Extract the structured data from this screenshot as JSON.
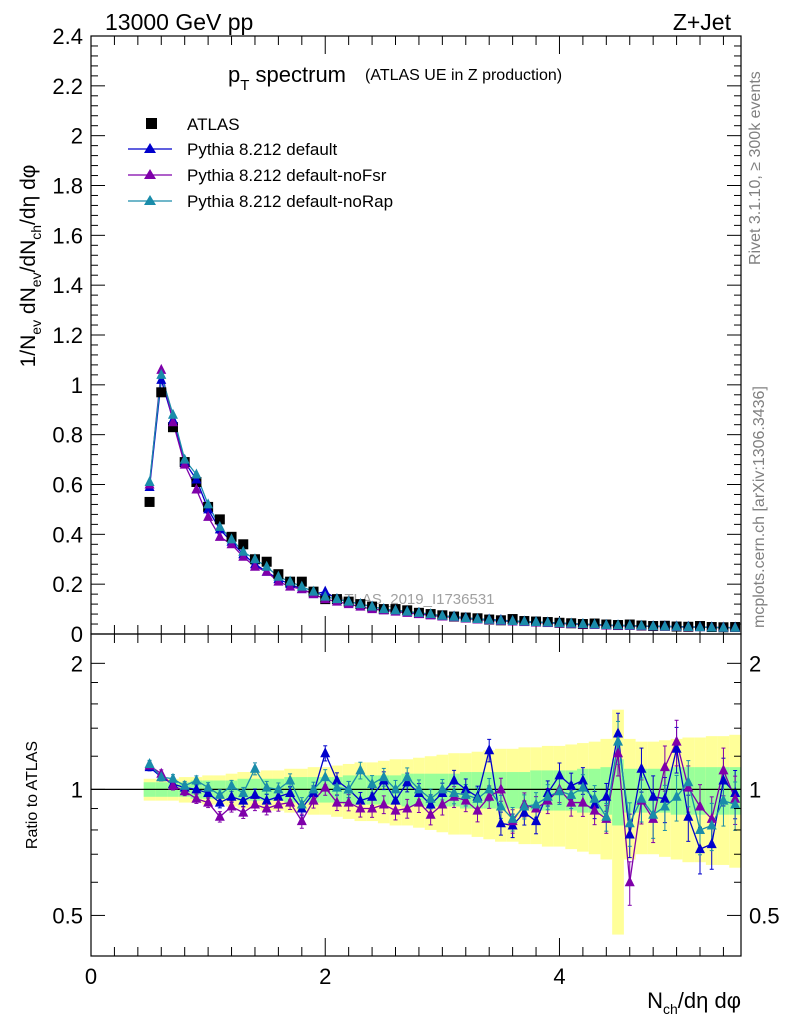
{
  "header": {
    "left": "13000 GeV pp",
    "right": "Z+Jet"
  },
  "side_labels": {
    "rivet": "Rivet 3.1.10, ≥ 300k events",
    "mcplots": "mcplots.cern.ch [arXiv:1306.3436]"
  },
  "plot_title": {
    "main_p": "p",
    "main_sub": "T",
    "main_rest": " spectrum",
    "small": "(ATLAS UE in Z production)"
  },
  "watermark": "ATLAS_2019_I1736531",
  "colors": {
    "atlas": "#000000",
    "default": "#0000cc",
    "noFsr": "#7f00aa",
    "noRap": "#1a8caa",
    "band_yellow": "#ffff99",
    "band_green": "#99ff99"
  },
  "chart_data": [
    {
      "type": "scatter",
      "panel": "main",
      "ylabel": "1/N_ev dN_ev/dN_ch/dη dφ",
      "ylim": [
        0,
        2.4
      ],
      "xlim": [
        0,
        5.55
      ],
      "yticks": [
        "0",
        "0.2",
        "0.4",
        "0.6",
        "0.8",
        "1",
        "1.2",
        "1.4",
        "1.6",
        "1.8",
        "2",
        "2.2",
        "2.4"
      ],
      "x": [
        0.5,
        0.6,
        0.7,
        0.8,
        0.9,
        1.0,
        1.1,
        1.2,
        1.3,
        1.4,
        1.5,
        1.6,
        1.7,
        1.8,
        1.9,
        2.0,
        2.1,
        2.2,
        2.3,
        2.4,
        2.5,
        2.6,
        2.7,
        2.8,
        2.9,
        3.0,
        3.1,
        3.2,
        3.3,
        3.4,
        3.5,
        3.6,
        3.7,
        3.8,
        3.9,
        4.0,
        4.1,
        4.2,
        4.3,
        4.4,
        4.5,
        4.6,
        4.7,
        4.8,
        4.9,
        5.0,
        5.1,
        5.2,
        5.3,
        5.4,
        5.5
      ],
      "series": [
        {
          "name": "ATLAS",
          "marker": "square",
          "values": [
            0.53,
            0.97,
            0.83,
            0.69,
            0.61,
            0.51,
            0.46,
            0.39,
            0.36,
            0.3,
            0.29,
            0.24,
            0.21,
            0.21,
            0.17,
            0.14,
            0.14,
            0.13,
            0.12,
            0.11,
            0.1,
            0.1,
            0.095,
            0.085,
            0.08,
            0.075,
            0.07,
            0.066,
            0.063,
            0.058,
            0.055,
            0.06,
            0.052,
            0.05,
            0.048,
            0.045,
            0.043,
            0.04,
            0.042,
            0.038,
            0.036,
            0.038,
            0.034,
            0.032,
            0.033,
            0.03,
            0.029,
            0.032,
            0.028,
            0.027,
            0.028
          ]
        },
        {
          "name": "Pythia 8.212 default",
          "marker": "triangle",
          "values": [
            0.59,
            1.02,
            0.86,
            0.69,
            0.62,
            0.5,
            0.42,
            0.37,
            0.32,
            0.28,
            0.25,
            0.22,
            0.2,
            0.18,
            0.16,
            0.17,
            0.14,
            0.13,
            0.12,
            0.11,
            0.1,
            0.095,
            0.09,
            0.085,
            0.078,
            0.072,
            0.07,
            0.065,
            0.06,
            0.058,
            0.056,
            0.052,
            0.05,
            0.048,
            0.046,
            0.044,
            0.041,
            0.039,
            0.037,
            0.036,
            0.034,
            0.034,
            0.032,
            0.031,
            0.031,
            0.03,
            0.029,
            0.028,
            0.027,
            0.026,
            0.026
          ]
        },
        {
          "name": "Pythia 8.212 default-noFsr",
          "marker": "triangle",
          "values": [
            0.6,
            1.06,
            0.85,
            0.68,
            0.58,
            0.47,
            0.39,
            0.36,
            0.31,
            0.27,
            0.25,
            0.21,
            0.19,
            0.18,
            0.16,
            0.14,
            0.13,
            0.12,
            0.11,
            0.1,
            0.095,
            0.09,
            0.085,
            0.08,
            0.075,
            0.07,
            0.067,
            0.062,
            0.058,
            0.055,
            0.052,
            0.05,
            0.048,
            0.046,
            0.044,
            0.042,
            0.04,
            0.038,
            0.036,
            0.034,
            0.033,
            0.032,
            0.031,
            0.03,
            0.029,
            0.028,
            0.027,
            0.027,
            0.026,
            0.025,
            0.025
          ]
        },
        {
          "name": "Pythia 8.212 default-noRap",
          "marker": "triangle",
          "values": [
            0.61,
            1.04,
            0.88,
            0.7,
            0.64,
            0.52,
            0.43,
            0.38,
            0.33,
            0.3,
            0.27,
            0.23,
            0.21,
            0.19,
            0.17,
            0.15,
            0.14,
            0.13,
            0.12,
            0.11,
            0.1,
            0.095,
            0.09,
            0.085,
            0.08,
            0.073,
            0.069,
            0.064,
            0.06,
            0.057,
            0.054,
            0.052,
            0.05,
            0.048,
            0.046,
            0.044,
            0.042,
            0.04,
            0.038,
            0.036,
            0.035,
            0.034,
            0.033,
            0.031,
            0.03,
            0.029,
            0.028,
            0.027,
            0.026,
            0.025,
            0.025
          ]
        }
      ],
      "legend": [
        "ATLAS",
        "Pythia 8.212 default",
        "Pythia 8.212 default-noFsr",
        "Pythia 8.212 default-noRap"
      ],
      "legend_position": "top-left"
    },
    {
      "type": "scatter",
      "panel": "ratio",
      "ylabel": "Ratio to ATLAS",
      "ylim": [
        0.4,
        2.35
      ],
      "yscale": "log",
      "yticks": [
        "0.5",
        "1",
        "2"
      ],
      "xlabel": "N_ch/dη dφ",
      "xticks": [
        "0",
        "2",
        "4"
      ],
      "x": [
        0.5,
        0.6,
        0.7,
        0.8,
        0.9,
        1.0,
        1.1,
        1.2,
        1.3,
        1.4,
        1.5,
        1.6,
        1.7,
        1.8,
        1.9,
        2.0,
        2.1,
        2.2,
        2.3,
        2.4,
        2.5,
        2.6,
        2.7,
        2.8,
        2.9,
        3.0,
        3.1,
        3.2,
        3.3,
        3.4,
        3.5,
        3.6,
        3.7,
        3.8,
        3.9,
        4.0,
        4.1,
        4.2,
        4.3,
        4.4,
        4.5,
        4.6,
        4.7,
        4.8,
        4.9,
        5.0,
        5.1,
        5.2,
        5.3,
        5.4,
        5.5
      ],
      "band_green_halfwidth": [
        0.04,
        0.04,
        0.04,
        0.04,
        0.05,
        0.05,
        0.05,
        0.05,
        0.06,
        0.06,
        0.06,
        0.06,
        0.07,
        0.07,
        0.07,
        0.07,
        0.07,
        0.08,
        0.08,
        0.08,
        0.08,
        0.08,
        0.09,
        0.09,
        0.09,
        0.09,
        0.09,
        0.1,
        0.1,
        0.1,
        0.1,
        0.1,
        0.1,
        0.11,
        0.11,
        0.11,
        0.11,
        0.12,
        0.12,
        0.13,
        0.18,
        0.12,
        0.12,
        0.12,
        0.12,
        0.13,
        0.13,
        0.13,
        0.13,
        0.13,
        0.13
      ],
      "band_yellow_halfwidth": [
        0.06,
        0.06,
        0.06,
        0.07,
        0.07,
        0.08,
        0.08,
        0.09,
        0.1,
        0.1,
        0.11,
        0.11,
        0.12,
        0.12,
        0.13,
        0.13,
        0.14,
        0.15,
        0.16,
        0.16,
        0.17,
        0.18,
        0.18,
        0.19,
        0.2,
        0.21,
        0.22,
        0.22,
        0.23,
        0.24,
        0.25,
        0.25,
        0.26,
        0.26,
        0.27,
        0.27,
        0.28,
        0.29,
        0.3,
        0.32,
        0.55,
        0.32,
        0.3,
        0.3,
        0.31,
        0.32,
        0.33,
        0.33,
        0.34,
        0.34,
        0.35
      ],
      "series": [
        {
          "name": "Pythia 8.212 default",
          "values": [
            1.13,
            1.07,
            1.03,
            1.01,
            1.0,
            0.98,
            0.93,
            0.96,
            0.94,
            0.97,
            0.94,
            0.96,
            0.98,
            0.9,
            0.98,
            1.22,
            1.05,
            1.0,
            0.94,
            0.96,
            1.05,
            0.94,
            1.04,
            0.98,
            0.92,
            0.98,
            1.05,
            1.0,
            0.96,
            1.24,
            0.83,
            0.82,
            0.88,
            0.84,
            0.98,
            1.08,
            1.02,
            1.05,
            0.92,
            0.96,
            1.36,
            0.78,
            1.12,
            0.96,
            0.95,
            1.25,
            0.86,
            0.72,
            0.74,
            1.05,
            0.98
          ]
        },
        {
          "name": "Pythia 8.212 default-noFsr",
          "values": [
            1.14,
            1.09,
            1.02,
            0.99,
            0.95,
            0.93,
            0.86,
            0.91,
            0.88,
            0.92,
            0.9,
            0.92,
            0.93,
            0.84,
            0.94,
            1.01,
            0.93,
            0.93,
            0.9,
            0.9,
            0.92,
            0.89,
            0.9,
            0.93,
            0.87,
            0.92,
            0.96,
            0.94,
            0.89,
            0.96,
            1.0,
            0.84,
            0.92,
            0.9,
            0.94,
            1.0,
            0.93,
            0.93,
            0.89,
            0.85,
            1.22,
            0.6,
            0.94,
            0.85,
            1.13,
            1.3,
            1.01,
            0.91,
            0.85,
            1.11,
            0.95
          ]
        },
        {
          "name": "Pythia 8.212 default-noRap",
          "values": [
            1.15,
            1.07,
            1.06,
            1.02,
            1.05,
            1.01,
            0.97,
            1.02,
            0.98,
            1.12,
            1.01,
            1.0,
            1.05,
            0.92,
            1.0,
            1.07,
            1.01,
            1.0,
            1.11,
            1.03,
            1.07,
            1.0,
            1.07,
            1.0,
            0.95,
            1.0,
            0.98,
            0.97,
            0.95,
            1.0,
            0.91,
            0.85,
            0.91,
            0.92,
            0.96,
            0.99,
            0.97,
            1.01,
            0.95,
            0.86,
            1.3,
            0.83,
            0.95,
            0.87,
            0.91,
            0.96,
            1.04,
            0.8,
            0.82,
            0.94,
            0.92
          ]
        }
      ]
    }
  ]
}
